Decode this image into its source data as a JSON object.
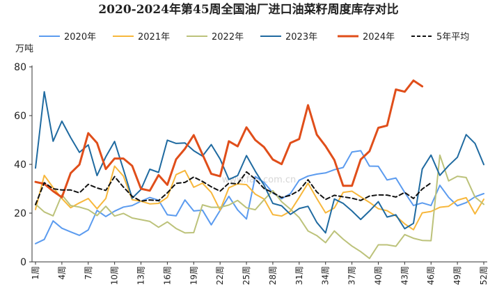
{
  "chart_data": {
    "type": "line",
    "title": "2020-2024年第45周全国油厂进口油菜籽周度库存对比",
    "ylabel": "万吨",
    "xlabel": "",
    "ylim": [
      0,
      80
    ],
    "yticks": [
      0,
      20,
      40,
      60,
      80
    ],
    "grid": false,
    "legend_position": "top",
    "xlim": [
      1,
      52
    ],
    "x_tick_labels": [
      {
        "x": 1,
        "label": "1周"
      },
      {
        "x": 4,
        "label": "4周"
      },
      {
        "x": 7,
        "label": "7周"
      },
      {
        "x": 10,
        "label": "10周"
      },
      {
        "x": 13,
        "label": "13周"
      },
      {
        "x": 16,
        "label": "16周"
      },
      {
        "x": 19,
        "label": "19周"
      },
      {
        "x": 22,
        "label": "22周"
      },
      {
        "x": 25,
        "label": "25周"
      },
      {
        "x": 28,
        "label": "28周"
      },
      {
        "x": 31,
        "label": "31周"
      },
      {
        "x": 34,
        "label": "34周"
      },
      {
        "x": 37,
        "label": "37周"
      },
      {
        "x": 40,
        "label": "40周"
      },
      {
        "x": 43,
        "label": "43周"
      },
      {
        "x": 46,
        "label": "46周"
      },
      {
        "x": 49,
        "label": "49周"
      },
      {
        "x": 52,
        "label": "52周"
      }
    ],
    "series": [
      {
        "name": "2020年",
        "color": "#5b9bef",
        "dashed": false,
        "bold": false,
        "x": [
          1,
          2,
          3,
          4,
          5,
          6,
          7,
          8,
          9,
          10,
          11,
          12,
          13,
          14,
          15,
          16,
          17,
          18,
          19,
          20,
          21,
          22,
          23,
          24,
          25,
          26,
          27,
          28,
          29,
          30,
          31,
          32,
          33,
          34,
          35,
          36,
          37,
          38,
          39,
          40,
          41,
          42,
          43,
          44,
          45,
          46,
          47,
          48,
          49,
          50,
          51,
          52
        ],
        "values": [
          7.5,
          9.2,
          16.8,
          13.8,
          12.3,
          10.9,
          13.1,
          21.1,
          18.6,
          20.8,
          22.5,
          23.1,
          24.9,
          26.4,
          25.3,
          19.3,
          18.9,
          25.4,
          20.9,
          21.2,
          15.2,
          21.1,
          26.9,
          21.3,
          17.6,
          35.0,
          32.6,
          28.3,
          25.9,
          28.0,
          33.5,
          35.2,
          36.0,
          36.5,
          37.8,
          38.7,
          45.1,
          45.6,
          39.3,
          39.2,
          33.6,
          34.4,
          28.5,
          23.1,
          24.2,
          23.1,
          31.4,
          26.5,
          23.0,
          24.3,
          26.7,
          28.0
        ]
      },
      {
        "name": "2021年",
        "color": "#f7b73b",
        "dashed": false,
        "bold": false,
        "x": [
          1,
          2,
          3,
          4,
          5,
          6,
          7,
          8,
          9,
          10,
          11,
          12,
          13,
          14,
          15,
          16,
          17,
          18,
          19,
          20,
          21,
          22,
          23,
          24,
          25,
          26,
          27,
          28,
          29,
          30,
          31,
          32,
          33,
          34,
          35,
          36,
          37,
          38,
          39,
          40,
          41,
          42,
          43,
          44,
          45,
          46,
          47,
          48,
          49,
          50,
          51,
          52
        ],
        "values": [
          21.5,
          35.5,
          30.5,
          26.0,
          22.2,
          24.2,
          26.0,
          21.8,
          26.0,
          39.3,
          35.2,
          25.5,
          24.9,
          23.8,
          24.0,
          26.5,
          35.8,
          37.5,
          30.6,
          32.3,
          28.5,
          21.2,
          30.4,
          32.0,
          31.7,
          27.8,
          25.8,
          19.4,
          18.8,
          20.8,
          26.4,
          32.3,
          26.0,
          20.1,
          22.1,
          28.5,
          29.0,
          26.7,
          24.4,
          21.8,
          21.0,
          18.8,
          15.6,
          13.2,
          20.1,
          20.7,
          22.4,
          22.8,
          25.3,
          26.3,
          19.7,
          25.7
        ]
      },
      {
        "name": "2022年",
        "color": "#bcc27a",
        "dashed": false,
        "bold": false,
        "x": [
          1,
          2,
          3,
          4,
          5,
          6,
          7,
          8,
          9,
          10,
          11,
          12,
          13,
          14,
          15,
          16,
          17,
          18,
          19,
          20,
          21,
          22,
          23,
          24,
          25,
          26,
          27,
          28,
          29,
          30,
          31,
          32,
          33,
          34,
          35,
          36,
          37,
          38,
          39,
          40,
          41,
          42,
          43,
          44,
          45,
          46,
          47,
          48,
          49,
          50,
          51,
          52
        ],
        "values": [
          23.7,
          20.5,
          18.9,
          27.5,
          23.1,
          22.5,
          21.4,
          19.0,
          22.8,
          18.8,
          19.9,
          18.0,
          17.3,
          16.6,
          14.2,
          16.4,
          13.7,
          11.9,
          12.0,
          23.4,
          22.4,
          22.4,
          23.3,
          25.2,
          22.2,
          21.4,
          25.5,
          29.2,
          24.7,
          21.6,
          18.2,
          12.7,
          10.8,
          7.9,
          12.7,
          9.3,
          6.5,
          4.2,
          1.4,
          7.0,
          7.0,
          6.4,
          11.2,
          9.7,
          8.8,
          8.7,
          43.8,
          33.2,
          35.1,
          34.6,
          26.6,
          23.6
        ]
      },
      {
        "name": "2023年",
        "color": "#1f6aa0",
        "dashed": false,
        "bold": false,
        "x": [
          1,
          2,
          3,
          4,
          5,
          6,
          7,
          8,
          9,
          10,
          11,
          12,
          13,
          14,
          15,
          16,
          17,
          18,
          19,
          20,
          21,
          22,
          23,
          24,
          25,
          26,
          27,
          28,
          29,
          30,
          31,
          32,
          33,
          34,
          35,
          36,
          37,
          38,
          39,
          40,
          41,
          42,
          43,
          44,
          45,
          46,
          47,
          48,
          49,
          50,
          51,
          52
        ],
        "values": [
          38.5,
          69.8,
          49.5,
          57.7,
          51.0,
          44.9,
          48.0,
          35.4,
          43.1,
          49.4,
          37.9,
          26.1,
          29.7,
          38.0,
          36.7,
          49.9,
          48.6,
          48.8,
          45.6,
          43.4,
          48.1,
          42.2,
          33.8,
          35.4,
          43.6,
          37.2,
          31.5,
          24.0,
          23.0,
          19.5,
          21.9,
          22.8,
          16.2,
          11.9,
          25.8,
          24.0,
          20.9,
          17.4,
          20.9,
          24.7,
          18.4,
          19.3,
          13.6,
          15.8,
          38.1,
          43.8,
          35.5,
          39.5,
          42.9,
          52.2,
          48.6,
          39.9
        ]
      },
      {
        "name": "2024年",
        "color": "#e04e1a",
        "dashed": false,
        "bold": true,
        "x": [
          1,
          2,
          3,
          4,
          5,
          6,
          7,
          8,
          9,
          10,
          11,
          12,
          13,
          14,
          15,
          16,
          17,
          18,
          19,
          20,
          21,
          22,
          23,
          24,
          25,
          26,
          27,
          28,
          29,
          30,
          31,
          32,
          33,
          34,
          35,
          36,
          37,
          38,
          39,
          40,
          41,
          42,
          43,
          44,
          45
        ],
        "values": [
          32.8,
          32.0,
          29.0,
          26.5,
          36.4,
          39.9,
          52.8,
          48.8,
          38.1,
          42.4,
          42.4,
          39.4,
          30.0,
          29.2,
          35.6,
          31.6,
          42.1,
          46.4,
          52.0,
          44.1,
          36.1,
          35.1,
          49.5,
          47.4,
          55.2,
          50.0,
          47.1,
          42.0,
          40.1,
          48.8,
          50.4,
          64.3,
          52.2,
          47.5,
          41.8,
          31.2,
          31.2,
          42.0,
          45.4,
          55.0,
          55.9,
          70.7,
          69.8,
          74.4,
          72.0
        ]
      },
      {
        "name": "5年平均",
        "color": "#111111",
        "dashed": true,
        "bold": false,
        "x": [
          1,
          2,
          3,
          4,
          5,
          6,
          7,
          8,
          9,
          10,
          11,
          12,
          13,
          14,
          15,
          16,
          17,
          18,
          19,
          20,
          21,
          22,
          23,
          24,
          25,
          26,
          27,
          28,
          29,
          30,
          31,
          32,
          33,
          34,
          35,
          36,
          37,
          38,
          39,
          40,
          41,
          42,
          43,
          44,
          45,
          46
        ],
        "values": [
          23.5,
          32.5,
          30.0,
          29.5,
          29.5,
          28.3,
          31.8,
          30.3,
          29.3,
          35.0,
          30.7,
          26.9,
          24.9,
          25.4,
          25.1,
          28.3,
          32.2,
          32.6,
          34.8,
          33.0,
          30.8,
          29.0,
          32.3,
          32.0,
          36.9,
          34.0,
          30.1,
          28.4,
          26.4,
          27.3,
          29.3,
          33.7,
          28.7,
          25.6,
          27.3,
          26.7,
          26.1,
          25.2,
          27.0,
          27.5,
          27.4,
          26.6,
          28.5,
          26.0,
          29.9,
          32.4
        ]
      }
    ],
    "watermark": "www.fao.com.cn"
  }
}
